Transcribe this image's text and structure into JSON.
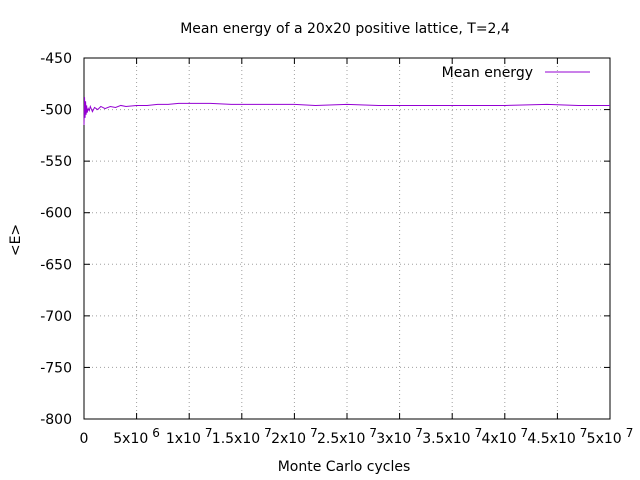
{
  "chart_data": {
    "type": "line",
    "title": "Mean energy of a 20x20 positive lattice, T=2,4",
    "xlabel": "Monte Carlo cycles",
    "ylabel": "<E>",
    "xlim": [
      0,
      50000000
    ],
    "ylim": [
      -800,
      -450
    ],
    "grid": true,
    "legend_position": "top-right",
    "x_ticks": [
      0,
      5000000,
      10000000,
      15000000,
      20000000,
      25000000,
      30000000,
      35000000,
      40000000,
      45000000,
      50000000
    ],
    "x_tick_labels": [
      {
        "base": "0",
        "exp": ""
      },
      {
        "base": "5x10",
        "exp": "6"
      },
      {
        "base": "1x10",
        "exp": "7"
      },
      {
        "base": "1.5x10",
        "exp": "7"
      },
      {
        "base": "2x10",
        "exp": "7"
      },
      {
        "base": "2.5x10",
        "exp": "7"
      },
      {
        "base": "3x10",
        "exp": "7"
      },
      {
        "base": "3.5x10",
        "exp": "7"
      },
      {
        "base": "4x10",
        "exp": "7"
      },
      {
        "base": "4.5x10",
        "exp": "7"
      },
      {
        "base": "5x10",
        "exp": "7"
      }
    ],
    "y_ticks": [
      -450,
      -500,
      -550,
      -600,
      -650,
      -700,
      -750,
      -800
    ],
    "y_tick_labels": [
      "-450",
      "-500",
      "-550",
      "-600",
      "-650",
      "-700",
      "-750",
      "-800"
    ],
    "series": [
      {
        "name": "Mean energy",
        "color": "#9400d3",
        "x": [
          0,
          50000,
          100000,
          150000,
          200000,
          250000,
          300000,
          400000,
          500000,
          600000,
          800000,
          1000000,
          1300000,
          1600000,
          2000000,
          2500000,
          3000000,
          3500000,
          4000000,
          5000000,
          6000000,
          7000000,
          8000000,
          9000000,
          10000000,
          12000000,
          14000000,
          16000000,
          18000000,
          20000000,
          22000000,
          25000000,
          28000000,
          30000000,
          33000000,
          36000000,
          40000000,
          44000000,
          47000000,
          50000000
        ],
        "y": [
          -515,
          -488,
          -508,
          -492,
          -505,
          -496,
          -503,
          -499,
          -501,
          -497,
          -502,
          -498,
          -500,
          -497,
          -499,
          -497,
          -498,
          -496,
          -497,
          -496,
          -496,
          -495,
          -495,
          -494,
          -494,
          -494,
          -495,
          -495,
          -495,
          -495,
          -496,
          -495,
          -496,
          -496,
          -496,
          -496,
          -496,
          -495,
          -496,
          -496
        ]
      }
    ]
  }
}
